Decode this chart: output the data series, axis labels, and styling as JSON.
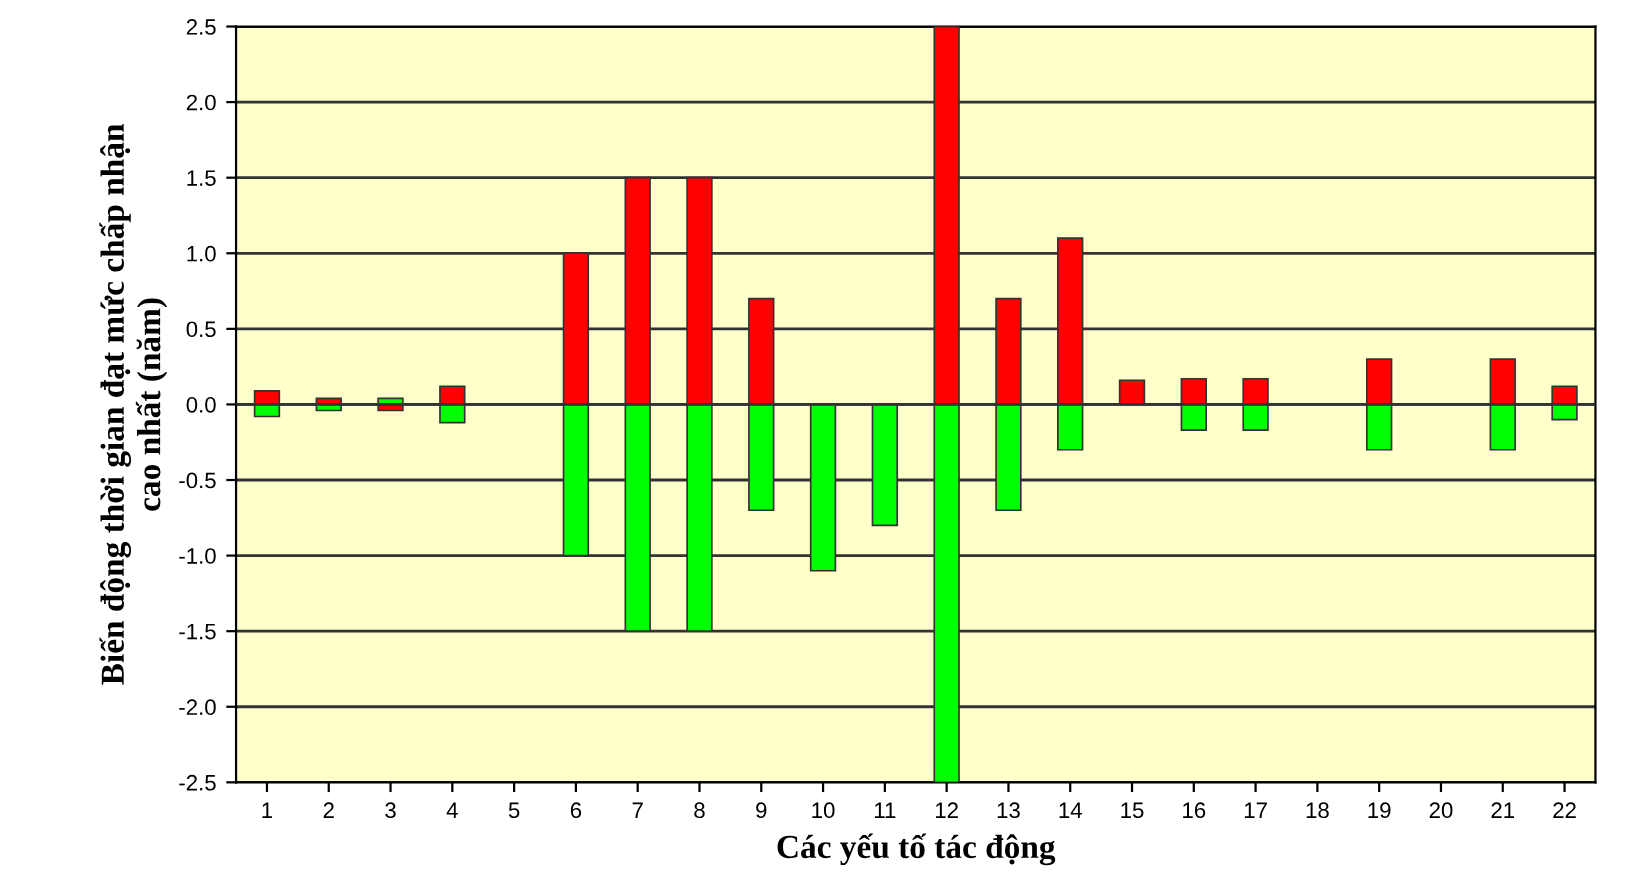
{
  "chart_data": {
    "type": "bar",
    "xlabel": "Các yếu tố tác động",
    "ylabel": "Biến động thời gian đạt mức chấp nhận\ncao nhất (năm)",
    "categories": [
      "1",
      "2",
      "3",
      "4",
      "5",
      "6",
      "7",
      "8",
      "9",
      "10",
      "11",
      "12",
      "13",
      "14",
      "15",
      "16",
      "17",
      "18",
      "19",
      "20",
      "21",
      "22"
    ],
    "series": [
      {
        "color": "#ff0000",
        "values": [
          0.09,
          0.04,
          -0.04,
          0.12,
          null,
          1.0,
          1.5,
          1.5,
          0.7,
          null,
          null,
          2.5,
          0.7,
          1.1,
          0.16,
          0.17,
          0.17,
          null,
          0.3,
          null,
          0.3,
          0.12
        ]
      },
      {
        "color": "#00ff00",
        "values": [
          -0.08,
          -0.04,
          0.04,
          -0.12,
          null,
          -1.0,
          -1.5,
          -1.5,
          -0.7,
          -1.1,
          -0.8,
          -2.5,
          -0.7,
          -0.3,
          null,
          -0.17,
          -0.17,
          null,
          -0.3,
          null,
          -0.3,
          -0.1
        ]
      }
    ],
    "ylim": [
      -2.5,
      2.5
    ],
    "yticks": [
      {
        "value": -2.5,
        "label": "-2.5"
      },
      {
        "value": -2.0,
        "label": "-2.0"
      },
      {
        "value": -1.5,
        "label": "-1.5"
      },
      {
        "value": -1.0,
        "label": "-1.0"
      },
      {
        "value": -0.5,
        "label": "-0.5"
      },
      {
        "value": 0,
        "label": "0.0"
      },
      {
        "value": 0.5,
        "label": "0.5"
      },
      {
        "value": 1.0,
        "label": "1.0"
      },
      {
        "value": 1.5,
        "label": "1.5"
      },
      {
        "value": 2.0,
        "label": "2.0"
      },
      {
        "value": 2.5,
        "label": "2.5"
      }
    ],
    "stacked": true,
    "grid": "y",
    "legend": false
  }
}
